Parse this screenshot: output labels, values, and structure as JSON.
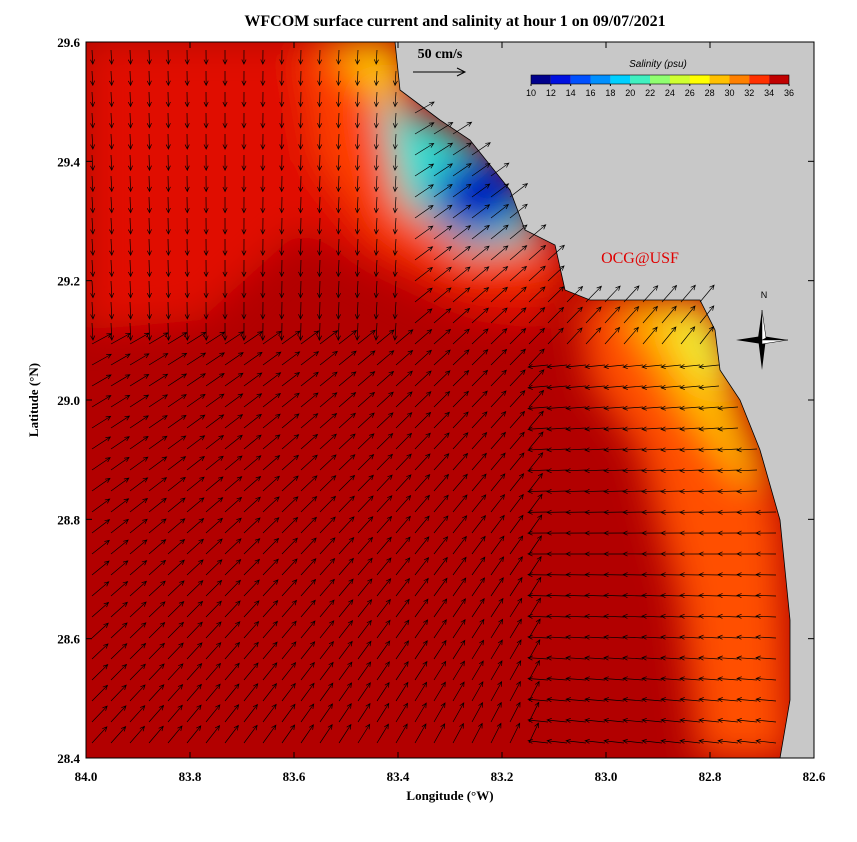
{
  "map": {
    "title": "WFCOM surface current and salinity at hour 1 on 09/07/2021",
    "x_label": "Longitude (°W)",
    "y_label": "Latitude (°N)",
    "xlim": [
      84.0,
      82.6
    ],
    "ylim": [
      28.4,
      29.6
    ],
    "xticks": [
      {
        "value": 84,
        "label": "84.0"
      },
      83.8,
      83.6,
      83.4,
      83.2,
      {
        "value": 83,
        "label": "83.0"
      },
      82.8,
      82.6
    ],
    "yticks": [
      28.4,
      28.6,
      28.8,
      {
        "value": 29,
        "label": "29.0"
      },
      29.2,
      29.4,
      29.6
    ],
    "colorbar": {
      "title": "Salinity (psu)",
      "lim": [
        10,
        36
      ],
      "ticks": [
        10,
        12,
        14,
        16,
        18,
        20,
        22,
        24,
        26,
        28,
        30,
        32,
        34,
        36
      ],
      "colors": [
        "#00008c",
        "#0010e0",
        "#0050ff",
        "#0090ff",
        "#00d0ff",
        "#40f0c0",
        "#90ff70",
        "#d0ff30",
        "#ffff00",
        "#ffc000",
        "#ff8000",
        "#ff3000",
        "#c00000"
      ]
    },
    "scale_label": "50 cm/s",
    "credit": "OCG@USF",
    "compass": "N"
  }
}
